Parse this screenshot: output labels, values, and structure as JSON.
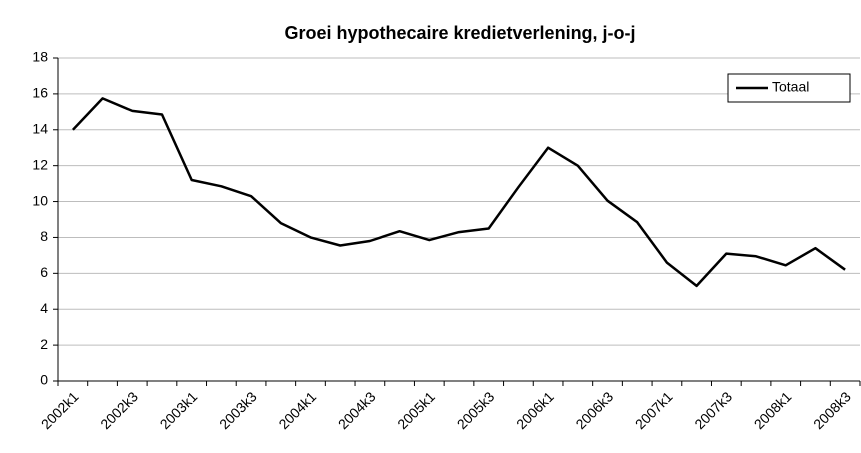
{
  "chart_data": {
    "type": "line",
    "title": "Groei hypothecaire kredietverlening, j-o-j",
    "categories": [
      "2002k1",
      null,
      "2002k3",
      null,
      "2003k1",
      null,
      "2003k3",
      null,
      "2004k1",
      null,
      "2004k3",
      null,
      "2005k1",
      null,
      "2005k3",
      null,
      "2006k1",
      null,
      "2006k3",
      null,
      "2007k1",
      null,
      "2007k3",
      null,
      "2008k1",
      null,
      "2008k3"
    ],
    "series": [
      {
        "name": "Totaal",
        "color": "#000000",
        "values": [
          14.0,
          15.75,
          15.05,
          14.85,
          11.2,
          10.85,
          10.3,
          8.8,
          8.0,
          7.55,
          7.8,
          8.35,
          7.85,
          8.3,
          8.5,
          10.8,
          13.0,
          12.0,
          10.05,
          8.85,
          6.6,
          5.3,
          7.1,
          6.95,
          6.45,
          7.4,
          6.2
        ]
      }
    ],
    "ylim": [
      0,
      18
    ],
    "yticks": [
      0,
      2,
      4,
      6,
      8,
      10,
      12,
      14,
      16,
      18
    ],
    "grid": true,
    "legend": "top-right"
  }
}
